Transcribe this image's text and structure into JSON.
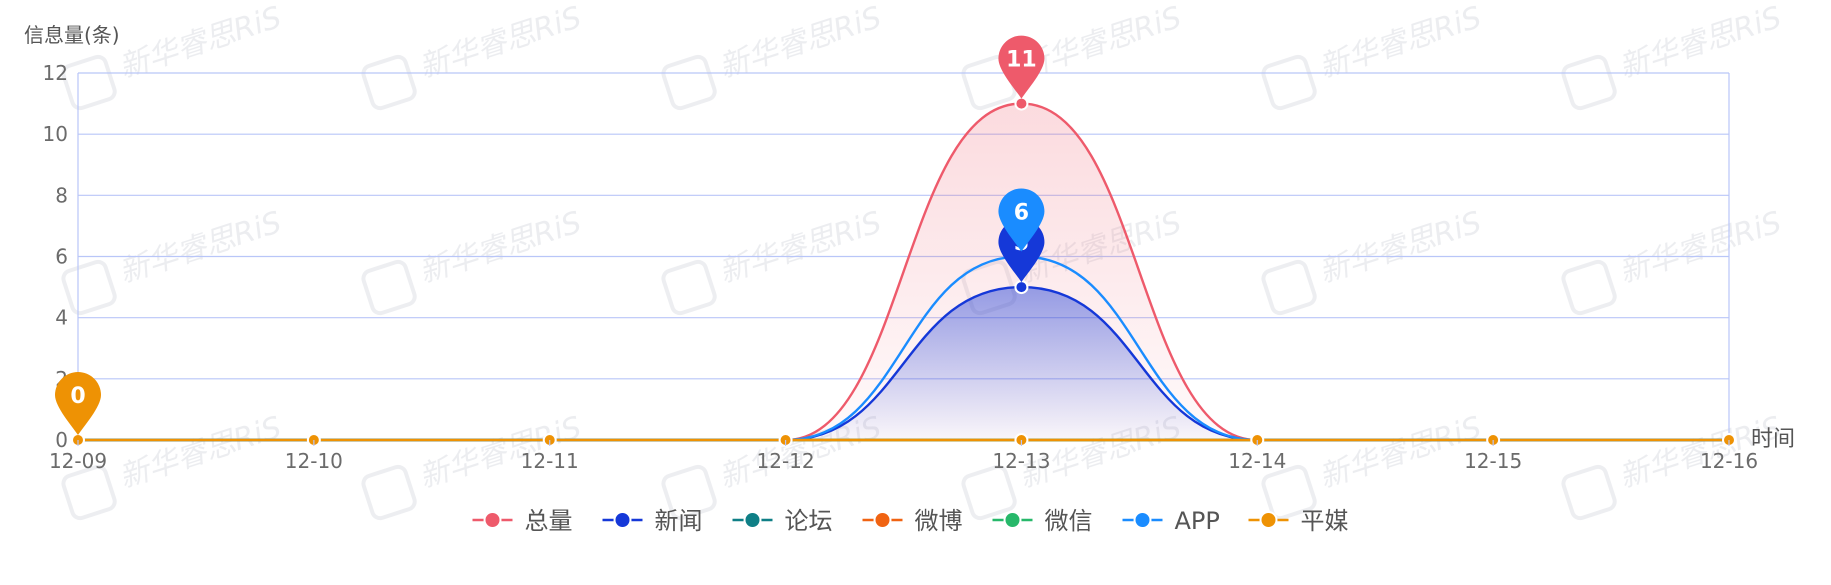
{
  "chart_data": {
    "type": "line",
    "y_axis_label": "信息量(条)",
    "x_axis_label": "时间",
    "x": [
      "12-09",
      "12-10",
      "12-11",
      "12-12",
      "12-13",
      "12-14",
      "12-15",
      "12-16"
    ],
    "ylim": [
      0,
      12
    ],
    "y_ticks": [
      "0",
      "2",
      "4",
      "6",
      "8",
      "10",
      "12"
    ],
    "grid": true,
    "legend_position": "bottom-center",
    "series": [
      {
        "name": "总量",
        "color": "#ee5a6b",
        "values": [
          0,
          0,
          0,
          0,
          11,
          0,
          0,
          0
        ],
        "area": true,
        "pin": {
          "index": 4,
          "label": "11"
        }
      },
      {
        "name": "新闻",
        "color": "#1538d8",
        "values": [
          0,
          0,
          0,
          0,
          5,
          0,
          0,
          0
        ],
        "area": true,
        "pin": {
          "index": 4,
          "label": "5"
        }
      },
      {
        "name": "论坛",
        "color": "#0f7f86",
        "values": [
          0,
          0,
          0,
          0,
          0,
          0,
          0,
          0
        ]
      },
      {
        "name": "微博",
        "color": "#f06312",
        "values": [
          0,
          0,
          0,
          0,
          0,
          0,
          0,
          0
        ]
      },
      {
        "name": "微信",
        "color": "#27b86a",
        "values": [
          0,
          0,
          0,
          0,
          0,
          0,
          0,
          0
        ]
      },
      {
        "name": "APP",
        "color": "#1a8cff",
        "values": [
          0,
          0,
          0,
          0,
          6,
          0,
          0,
          0
        ],
        "pin": {
          "index": 4,
          "label": "6"
        }
      },
      {
        "name": "平媒",
        "color": "#ee9204",
        "values": [
          0,
          0,
          0,
          0,
          0,
          0,
          0,
          0
        ],
        "pin": {
          "index": 0,
          "label": "0"
        }
      }
    ]
  },
  "watermark": {
    "text": "新华睿思RiS"
  }
}
